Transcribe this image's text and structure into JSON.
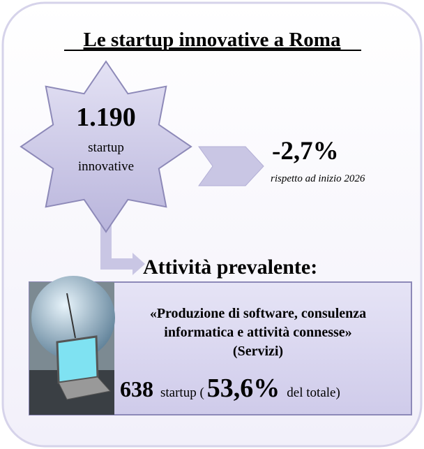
{
  "header": {
    "title": "Le startup innovative a Roma"
  },
  "star": {
    "value": "1.190",
    "line1": "startup",
    "line2": "innovative"
  },
  "change": {
    "value": "-2,7%",
    "note": "rispetto ad inizio 2026"
  },
  "activity": {
    "heading": "Attività prevalente:",
    "lines": [
      "«Produzione di software, consulenza",
      "informatica e attività connesse»",
      "(Servizi)"
    ],
    "count": "638",
    "count_unit": "startup (",
    "share": "53,6%",
    "share_unit": "del totale)"
  }
}
